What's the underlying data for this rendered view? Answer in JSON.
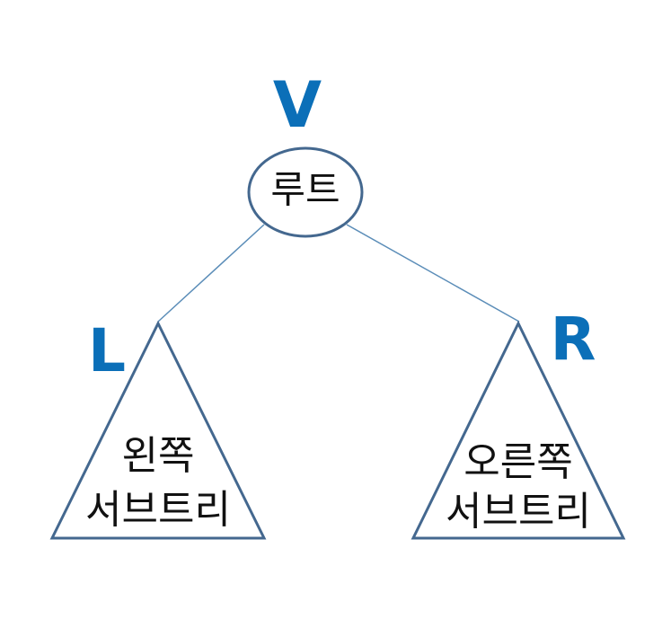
{
  "root": {
    "letter": "V",
    "label": "루트"
  },
  "left": {
    "letter": "L",
    "label_line1": "왼쪽",
    "label_line2": "서브트리"
  },
  "right": {
    "letter": "R",
    "label_line1": "오른쪽",
    "label_line2": "서브트리"
  },
  "colors": {
    "accent_letters": "#0b6fb8",
    "shape_stroke": "#44688f",
    "edge_stroke": "#5b8db8",
    "text": "#111111"
  }
}
